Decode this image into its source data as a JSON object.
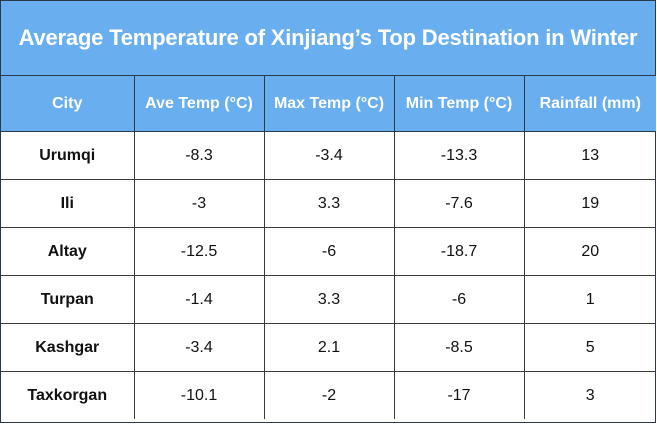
{
  "title": "Average Temperature of Xinjiang’s Top Destination in Winter",
  "colors": {
    "header_bg": "#69aeee",
    "header_text": "#ffffff",
    "border": "#2b3a4a"
  },
  "headers": [
    "City",
    "Ave Temp (°C)",
    "Max Temp (°C)",
    "Min Temp (°C)",
    "Rainfall (mm)"
  ],
  "rows": [
    [
      "Urumqi",
      "-8.3",
      "-3.4",
      "-13.3",
      "13"
    ],
    [
      "Ili",
      "-3",
      "3.3",
      "-7.6",
      "19"
    ],
    [
      "Altay",
      "-12.5",
      "-6",
      "-18.7",
      "20"
    ],
    [
      "Turpan",
      "-1.4",
      "3.3",
      "-6",
      "1"
    ],
    [
      "Kashgar",
      "-3.4",
      "2.1",
      "-8.5",
      "5"
    ],
    [
      "Taxkorgan",
      "-10.1",
      "-2",
      "-17",
      "3"
    ]
  ],
  "chart_data": {
    "type": "table",
    "title": "Average Temperature of Xinjiang’s Top Destination in Winter",
    "columns": [
      "City",
      "Ave Temp (°C)",
      "Max Temp (°C)",
      "Min Temp (°C)",
      "Rainfall (mm)"
    ],
    "categories": [
      "Urumqi",
      "Ili",
      "Altay",
      "Turpan",
      "Kashgar",
      "Taxkorgan"
    ],
    "series": [
      {
        "name": "Ave Temp (°C)",
        "values": [
          -8.3,
          -3,
          -12.5,
          -1.4,
          -3.4,
          -10.1
        ]
      },
      {
        "name": "Max Temp (°C)",
        "values": [
          -3.4,
          3.3,
          -6,
          3.3,
          2.1,
          -2
        ]
      },
      {
        "name": "Min Temp (°C)",
        "values": [
          -13.3,
          -7.6,
          -18.7,
          -6,
          -8.5,
          -17
        ]
      },
      {
        "name": "Rainfall (mm)",
        "values": [
          13,
          19,
          20,
          1,
          5,
          3
        ]
      }
    ]
  }
}
